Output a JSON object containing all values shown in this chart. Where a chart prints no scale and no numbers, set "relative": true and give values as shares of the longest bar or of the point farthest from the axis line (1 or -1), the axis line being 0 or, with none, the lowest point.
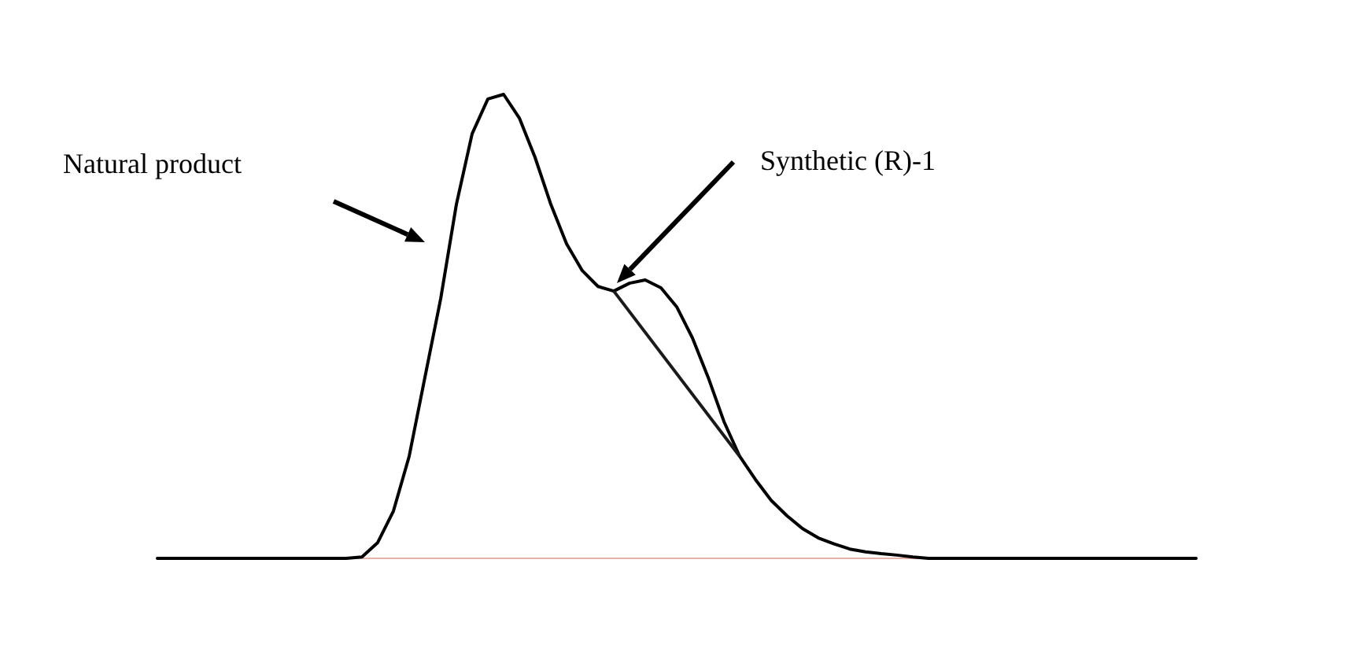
{
  "chart_data": {
    "type": "line",
    "relative": true,
    "categories": [
      null,
      null,
      null,
      null,
      null,
      null,
      null,
      null,
      null,
      null,
      null,
      null,
      null,
      null,
      null,
      null,
      null,
      null,
      null,
      null,
      null,
      null,
      null,
      null,
      null,
      null,
      null,
      null,
      null,
      null,
      null,
      null,
      null,
      null,
      null,
      null,
      null,
      null,
      null,
      null,
      null,
      null,
      null,
      null,
      null,
      null,
      null,
      null,
      null,
      null,
      null,
      null,
      null,
      null,
      null,
      null,
      null,
      null,
      null,
      null,
      null,
      null,
      null,
      null,
      null,
      null,
      null
    ],
    "series": [
      {
        "color": "#000000",
        "values": [
          0,
          0,
          0,
          0,
          0,
          0,
          0,
          0,
          0,
          0,
          0,
          0,
          0,
          0.003,
          0.034,
          0.102,
          0.22,
          0.39,
          0.559,
          0.763,
          0.915,
          0.99,
          1,
          0.949,
          0.864,
          0.763,
          0.678,
          0.62,
          0.586,
          0.576,
          0.593,
          0.6,
          0.583,
          0.542,
          0.475,
          0.39,
          0.295,
          0.22,
          0.17,
          0.125,
          0.092,
          0.064,
          0.044,
          0.031,
          0.02,
          0.014,
          0.01,
          0.007,
          0.003,
          0,
          0,
          0,
          0,
          0,
          0,
          0,
          0,
          0,
          0,
          0,
          0,
          0,
          0,
          0,
          0,
          0,
          0
        ]
      }
    ],
    "annotations": [
      "Natural product",
      "Synthetic (R)-1"
    ]
  }
}
